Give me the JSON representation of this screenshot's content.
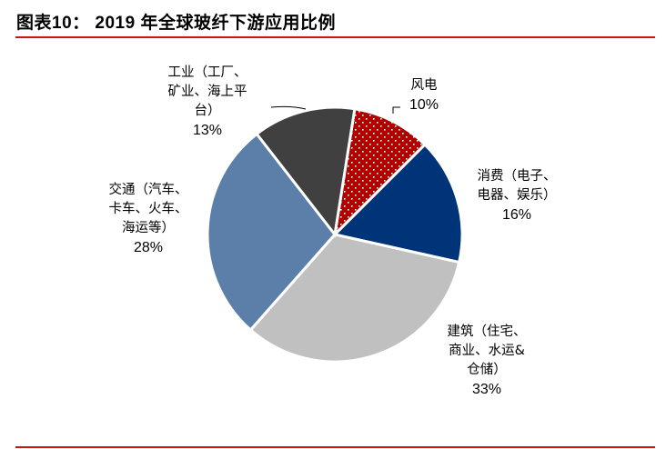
{
  "title": "图表10：  2019 年全球玻纤下游应用比例",
  "chart_data": {
    "type": "pie",
    "title": "图表10：  2019 年全球玻纤下游应用比例",
    "direction": "clockwise",
    "slices": [
      {
        "key": "wind",
        "label_lines": [
          "风电"
        ],
        "value": 10,
        "value_label": "10%",
        "color": "#b00000",
        "pattern": "white-dots"
      },
      {
        "key": "consumer",
        "label_lines": [
          "消费（电子、",
          "电器、娱乐）"
        ],
        "value": 16,
        "value_label": "16%",
        "color": "#003479"
      },
      {
        "key": "construction",
        "label_lines": [
          "建筑（住宅、",
          "商业、水运&",
          "仓储）"
        ],
        "value": 33,
        "value_label": "33%",
        "color": "#c0c0c0"
      },
      {
        "key": "transport",
        "label_lines": [
          "交通（汽车、",
          "卡车、火车、",
          "海运等）"
        ],
        "value": 28,
        "value_label": "28%",
        "color": "#5b7fa8"
      },
      {
        "key": "industrial",
        "label_lines": [
          "工业（工厂、",
          "矿业、海上平",
          "台）"
        ],
        "value": 13,
        "value_label": "13%",
        "color": "#404040"
      }
    ]
  }
}
